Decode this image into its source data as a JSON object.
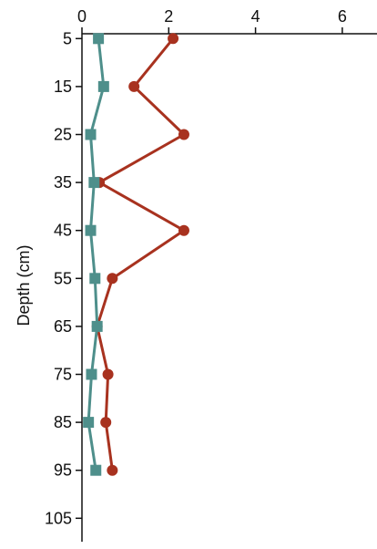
{
  "chart_data": {
    "type": "line",
    "orientation": "vertical-depth-profile",
    "ylabel": "Depth (cm)",
    "xlabel": "",
    "x_axis_position": "top",
    "y_axis_reversed": true,
    "xlim": [
      0,
      6.8
    ],
    "ylim": [
      0,
      105
    ],
    "x_ticks": [
      0,
      2,
      4,
      6
    ],
    "y_ticks": [
      5,
      15,
      25,
      35,
      45,
      55,
      65,
      75,
      85,
      95,
      105
    ],
    "grid": false,
    "legend": "none",
    "depth": [
      5,
      15,
      25,
      35,
      45,
      55,
      65,
      75,
      85,
      95
    ],
    "series": [
      {
        "marker": "circle",
        "color": "#a8321f",
        "values": [
          2.1,
          1.2,
          2.35,
          0.4,
          2.35,
          0.7,
          0.35,
          0.6,
          0.55,
          0.7
        ]
      },
      {
        "marker": "square",
        "color": "#4e8f8b",
        "values": [
          0.38,
          0.5,
          0.2,
          0.28,
          0.2,
          0.3,
          0.35,
          0.22,
          0.15,
          0.32
        ]
      }
    ]
  }
}
